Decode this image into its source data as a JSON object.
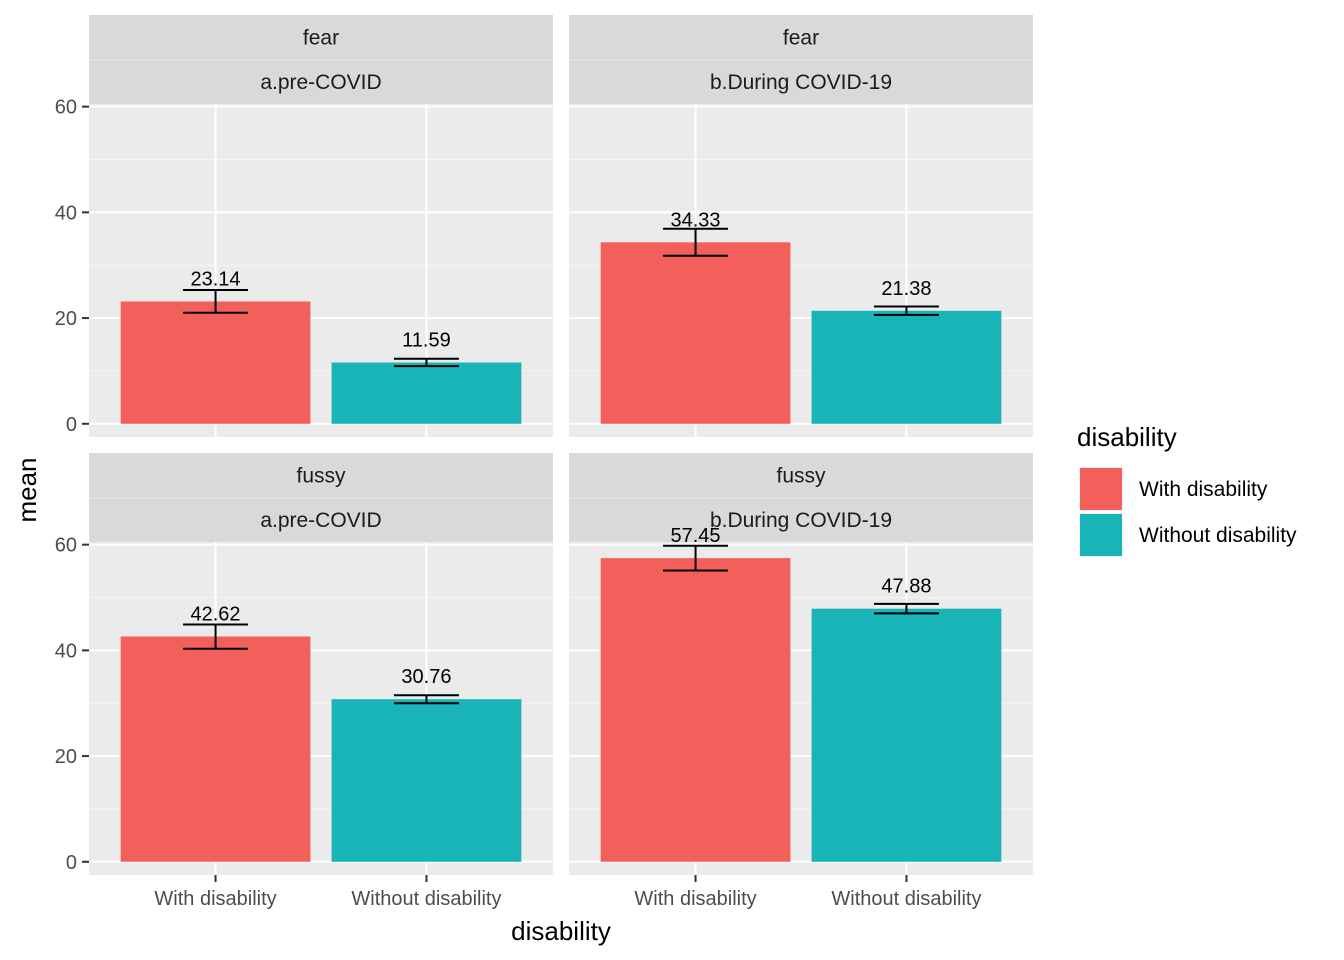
{
  "chart_data": {
    "type": "bar",
    "xlabel": "disability",
    "ylabel": "mean",
    "ylim": [
      -2.5,
      60.5
    ],
    "y_ticks": [
      0,
      20,
      40,
      60
    ],
    "y_tick_labels": [
      "0",
      "20",
      "40",
      "60"
    ],
    "categories": [
      "With disability",
      "Without disability"
    ],
    "colors": {
      "With disability": "#F35F5B",
      "Without disability": "#19B4B8"
    },
    "legend": {
      "title": "disability",
      "placement": "right",
      "entries": [
        "With disability",
        "Without disability"
      ]
    },
    "grid": true,
    "facets": [
      {
        "row": "fear",
        "col": "a.pre-COVID",
        "values": [
          23.14,
          11.59
        ],
        "labels": [
          "23.14",
          "11.59"
        ],
        "err_low": [
          21.0,
          10.9
        ],
        "err_high": [
          25.3,
          12.3
        ]
      },
      {
        "row": "fear",
        "col": "b.During COVID-19",
        "values": [
          34.33,
          21.38
        ],
        "labels": [
          "34.33",
          "21.38"
        ],
        "err_low": [
          31.8,
          20.6
        ],
        "err_high": [
          36.9,
          22.2
        ]
      },
      {
        "row": "fussy",
        "col": "a.pre-COVID",
        "values": [
          42.62,
          30.76
        ],
        "labels": [
          "42.62",
          "30.76"
        ],
        "err_low": [
          40.3,
          30.0
        ],
        "err_high": [
          44.9,
          31.5
        ]
      },
      {
        "row": "fussy",
        "col": "b.During COVID-19",
        "values": [
          57.45,
          47.88
        ],
        "labels": [
          "57.45",
          "47.88"
        ],
        "err_low": [
          55.1,
          47.0
        ],
        "err_high": [
          59.8,
          48.8
        ]
      }
    ]
  }
}
